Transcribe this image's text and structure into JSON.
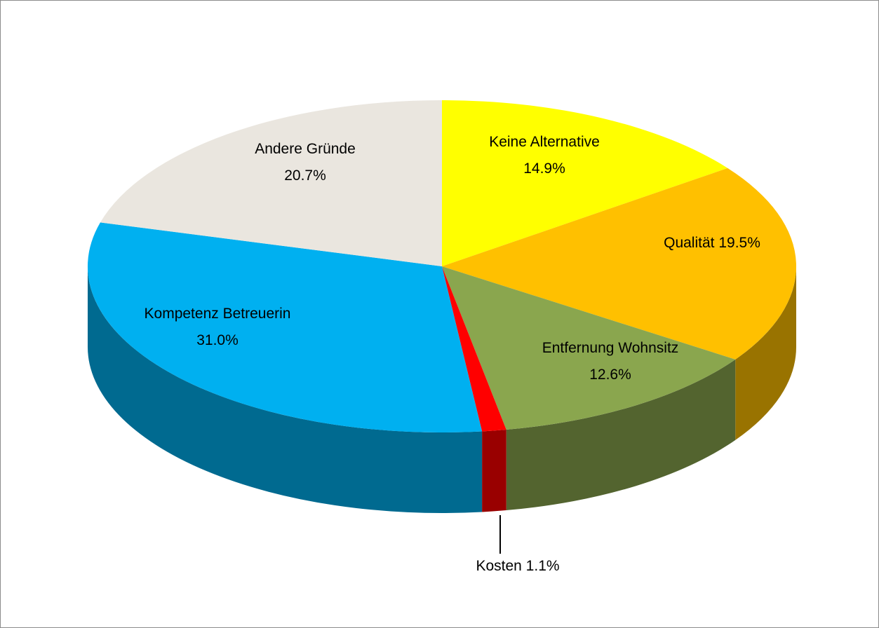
{
  "chart_data": {
    "type": "pie",
    "categories": [
      "Keine Alternative",
      "Qualität",
      "Entfernung Wohnsitz",
      "Kosten",
      "Kompetenz Betreuerin",
      "Andere Gründe"
    ],
    "values": [
      14.9,
      19.5,
      12.6,
      1.1,
      31.0,
      20.7
    ],
    "value_labels": [
      "14.9%",
      "19.5%",
      "12.6%",
      "1.1%",
      "31.0%",
      "20.7%"
    ],
    "colors": [
      "#ffff00",
      "#ffc000",
      "#8aa64e",
      "#ff0000",
      "#00b0f0",
      "#eae6df"
    ]
  }
}
